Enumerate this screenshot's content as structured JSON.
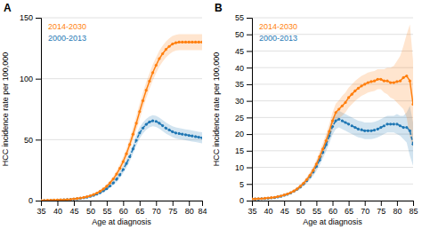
{
  "chart_data": [
    {
      "type": "line",
      "title": "A",
      "x_label": "Age at diagnosis",
      "y_label": "HCC incidence rate per 100,000",
      "x": [
        35,
        36,
        37,
        38,
        39,
        40,
        41,
        42,
        43,
        44,
        45,
        46,
        47,
        48,
        49,
        50,
        51,
        52,
        53,
        54,
        55,
        56,
        57,
        58,
        59,
        60,
        61,
        62,
        63,
        64,
        65,
        66,
        67,
        68,
        69,
        70,
        71,
        72,
        73,
        74,
        75,
        76,
        77,
        78,
        79,
        80,
        81,
        82,
        83,
        84
      ],
      "series": [
        {
          "name": "2000-2013",
          "line_style": "dashed",
          "marker": "circle",
          "values": [
            0.1,
            0.2,
            0.2,
            0.3,
            0.3,
            0.4,
            0.5,
            0.6,
            0.8,
            1.0,
            1.2,
            1.5,
            1.9,
            2.3,
            2.8,
            3.5,
            4.3,
            5.3,
            6.5,
            8.0,
            9.8,
            12.0,
            14.5,
            17.5,
            21.2,
            25.5,
            30.5,
            36.0,
            42.5,
            49.5,
            55.5,
            59.5,
            62.5,
            64.5,
            65.5,
            65.0,
            63.5,
            61.5,
            59.5,
            58.0,
            56.5,
            55.5,
            55.0,
            54.5,
            54.0,
            53.5,
            53.0,
            52.5,
            52.0,
            51.5
          ],
          "lower": [
            0.0,
            0.1,
            0.1,
            0.2,
            0.2,
            0.3,
            0.4,
            0.5,
            0.6,
            0.8,
            1.0,
            1.3,
            1.6,
            1.9,
            2.3,
            2.9,
            3.7,
            4.5,
            5.5,
            6.9,
            8.4,
            10.3,
            12.5,
            15.2,
            18.5,
            22.5,
            27.0,
            32.2,
            38.5,
            45.0,
            51.0,
            55.0,
            58.0,
            60.0,
            61.0,
            60.5,
            59.0,
            57.0,
            55.0,
            53.5,
            52.0,
            51.0,
            50.5,
            50.0,
            49.5,
            49.0,
            48.5,
            48.0,
            47.5,
            47.0
          ],
          "upper": [
            0.2,
            0.3,
            0.3,
            0.4,
            0.4,
            0.5,
            0.6,
            0.7,
            1.0,
            1.2,
            1.4,
            1.7,
            2.2,
            2.7,
            3.3,
            4.1,
            4.9,
            6.1,
            7.5,
            9.1,
            11.2,
            13.7,
            16.5,
            19.8,
            23.9,
            28.5,
            34.0,
            39.8,
            46.5,
            54.0,
            60.0,
            64.0,
            67.0,
            69.0,
            70.0,
            69.5,
            68.0,
            66.0,
            64.0,
            62.5,
            61.0,
            60.0,
            59.5,
            59.0,
            58.5,
            58.0,
            57.5,
            57.0,
            56.5,
            56.0
          ]
        },
        {
          "name": "2014-2030",
          "line_style": "solid",
          "marker": "circle",
          "values": [
            0.2,
            0.2,
            0.3,
            0.3,
            0.4,
            0.5,
            0.6,
            0.7,
            0.9,
            1.1,
            1.4,
            1.7,
            2.1,
            2.6,
            3.2,
            4.0,
            5.0,
            6.2,
            7.7,
            9.5,
            11.8,
            14.5,
            17.8,
            21.8,
            26.5,
            32.0,
            38.5,
            46.0,
            54.5,
            63.5,
            73.0,
            82.0,
            90.5,
            98.0,
            105.0,
            111.0,
            116.5,
            120.5,
            124.0,
            126.5,
            128.5,
            129.5,
            130.0,
            130.0,
            130.0,
            130.0,
            130.0,
            130.0,
            130.0,
            130.0
          ],
          "lower": [
            0.1,
            0.1,
            0.2,
            0.2,
            0.3,
            0.4,
            0.5,
            0.6,
            0.7,
            0.9,
            1.2,
            1.4,
            1.8,
            2.2,
            2.7,
            3.4,
            4.3,
            5.3,
            6.6,
            8.2,
            10.2,
            12.6,
            15.5,
            19.0,
            23.2,
            28.2,
            34.2,
            41.0,
            49.0,
            57.5,
            66.5,
            75.5,
            84.0,
            91.5,
            98.5,
            104.5,
            110.0,
            114.0,
            117.5,
            120.0,
            122.0,
            123.0,
            123.5,
            123.5,
            123.5,
            123.5,
            123.5,
            123.5,
            123.5,
            123.5
          ],
          "upper": [
            0.3,
            0.3,
            0.4,
            0.4,
            0.5,
            0.6,
            0.7,
            0.8,
            1.1,
            1.3,
            1.6,
            2.0,
            2.4,
            3.0,
            3.7,
            4.6,
            5.7,
            7.1,
            8.8,
            10.8,
            13.4,
            16.4,
            20.1,
            24.6,
            29.8,
            35.8,
            42.8,
            51.0,
            60.0,
            69.5,
            79.5,
            88.5,
            97.0,
            104.5,
            111.5,
            117.5,
            123.0,
            127.0,
            130.5,
            133.0,
            135.0,
            136.0,
            136.5,
            136.5,
            136.5,
            136.5,
            136.5,
            136.5,
            136.5,
            136.5
          ]
        }
      ],
      "xlim": [
        35,
        84
      ],
      "xticks": [
        35,
        40,
        45,
        50,
        55,
        60,
        65,
        70,
        75,
        80,
        84
      ],
      "ylim": [
        0,
        150
      ],
      "yticks": [
        0,
        50,
        100,
        150
      ],
      "grid": true
    },
    {
      "type": "line",
      "title": "B",
      "x_label": "Age at diagnosis",
      "y_label": "HCC incidence rate per 100,000",
      "x": [
        35,
        36,
        37,
        38,
        39,
        40,
        41,
        42,
        43,
        44,
        45,
        46,
        47,
        48,
        49,
        50,
        51,
        52,
        53,
        54,
        55,
        56,
        57,
        58,
        59,
        60,
        61,
        62,
        63,
        64,
        65,
        66,
        67,
        68,
        69,
        70,
        71,
        72,
        73,
        74,
        75,
        76,
        77,
        78,
        79,
        80,
        81,
        82,
        83,
        84,
        85
      ],
      "series": [
        {
          "name": "2000-2013",
          "line_style": "dashed",
          "marker": "circle",
          "values": [
            0.4,
            0.5,
            0.5,
            0.6,
            0.6,
            0.7,
            0.8,
            0.9,
            1.1,
            1.3,
            1.6,
            1.9,
            2.3,
            2.8,
            3.4,
            4.1,
            5.0,
            6.0,
            7.2,
            8.6,
            10.3,
            12.2,
            14.5,
            16.8,
            19.5,
            22.3,
            24.0,
            24.5,
            24.0,
            23.5,
            23.0,
            22.5,
            22.0,
            21.5,
            21.3,
            21.0,
            21.0,
            21.0,
            21.2,
            21.5,
            22.0,
            22.5,
            23.0,
            23.0,
            23.0,
            23.0,
            22.5,
            22.0,
            22.0,
            21.0,
            17.0
          ],
          "lower": [
            0.2,
            0.3,
            0.3,
            0.4,
            0.4,
            0.5,
            0.6,
            0.7,
            0.9,
            1.1,
            1.3,
            1.6,
            2.0,
            2.4,
            2.9,
            3.5,
            4.3,
            5.2,
            6.2,
            7.4,
            8.9,
            10.6,
            12.7,
            14.8,
            17.2,
            19.8,
            21.5,
            22.0,
            21.5,
            21.0,
            20.5,
            20.0,
            19.5,
            19.0,
            18.8,
            18.5,
            18.5,
            18.5,
            18.7,
            19.0,
            19.5,
            20.0,
            20.5,
            20.5,
            20.5,
            20.0,
            19.5,
            18.5,
            17.5,
            13.5,
            10.5
          ],
          "upper": [
            0.6,
            0.7,
            0.7,
            0.8,
            0.8,
            0.9,
            1.0,
            1.1,
            1.3,
            1.5,
            1.9,
            2.2,
            2.6,
            3.2,
            3.9,
            4.7,
            5.7,
            6.8,
            8.2,
            9.8,
            11.7,
            13.8,
            16.3,
            18.8,
            21.8,
            24.8,
            26.5,
            27.0,
            26.5,
            26.0,
            25.5,
            25.0,
            24.5,
            24.0,
            23.8,
            23.5,
            23.5,
            23.5,
            23.7,
            24.0,
            24.5,
            25.0,
            25.5,
            25.5,
            25.5,
            26.0,
            25.5,
            25.5,
            26.5,
            28.5,
            23.5
          ]
        },
        {
          "name": "2014-2030",
          "line_style": "solid",
          "marker": "circle",
          "values": [
            0.5,
            0.5,
            0.6,
            0.6,
            0.7,
            0.8,
            0.9,
            1.0,
            1.2,
            1.4,
            1.7,
            2.0,
            2.4,
            2.9,
            3.5,
            4.3,
            5.2,
            6.3,
            7.6,
            9.1,
            11.0,
            13.2,
            15.5,
            18.0,
            20.8,
            24.0,
            26.5,
            27.5,
            28.5,
            29.5,
            31.0,
            32.0,
            33.0,
            33.8,
            34.5,
            35.0,
            35.5,
            35.8,
            36.0,
            36.5,
            36.5,
            36.0,
            36.0,
            35.5,
            35.5,
            35.8,
            36.0,
            37.0,
            37.5,
            36.0,
            29.0
          ],
          "lower": [
            0.3,
            0.3,
            0.4,
            0.4,
            0.5,
            0.6,
            0.7,
            0.8,
            1.0,
            1.2,
            1.4,
            1.7,
            2.1,
            2.5,
            3.0,
            3.7,
            4.5,
            5.5,
            6.6,
            8.0,
            9.7,
            11.6,
            13.7,
            16.0,
            18.5,
            21.5,
            23.8,
            24.8,
            25.5,
            26.5,
            28.0,
            29.0,
            30.0,
            30.8,
            31.5,
            32.0,
            32.5,
            32.8,
            33.0,
            33.5,
            33.5,
            32.5,
            32.0,
            31.0,
            30.5,
            29.5,
            28.5,
            27.5,
            25.0,
            19.0,
            16.0
          ],
          "upper": [
            0.7,
            0.7,
            0.8,
            0.8,
            0.9,
            1.0,
            1.1,
            1.2,
            1.4,
            1.6,
            2.0,
            2.3,
            2.7,
            3.3,
            4.0,
            4.9,
            5.9,
            7.1,
            8.6,
            10.2,
            12.3,
            14.8,
            17.3,
            20.0,
            23.1,
            26.5,
            29.2,
            30.2,
            31.5,
            32.5,
            34.0,
            35.0,
            36.0,
            36.8,
            37.5,
            38.0,
            38.5,
            38.8,
            39.0,
            39.5,
            39.5,
            39.5,
            40.0,
            40.0,
            40.5,
            42.0,
            43.5,
            46.5,
            50.0,
            53.0,
            42.0
          ]
        }
      ],
      "xlim": [
        35,
        85
      ],
      "xticks": [
        35,
        40,
        45,
        50,
        55,
        60,
        65,
        70,
        75,
        80,
        85
      ],
      "ylim": [
        0,
        55
      ],
      "yticks": [
        0,
        5,
        10,
        15,
        20,
        25,
        30,
        35,
        40,
        45,
        50,
        55
      ],
      "grid": true
    }
  ]
}
